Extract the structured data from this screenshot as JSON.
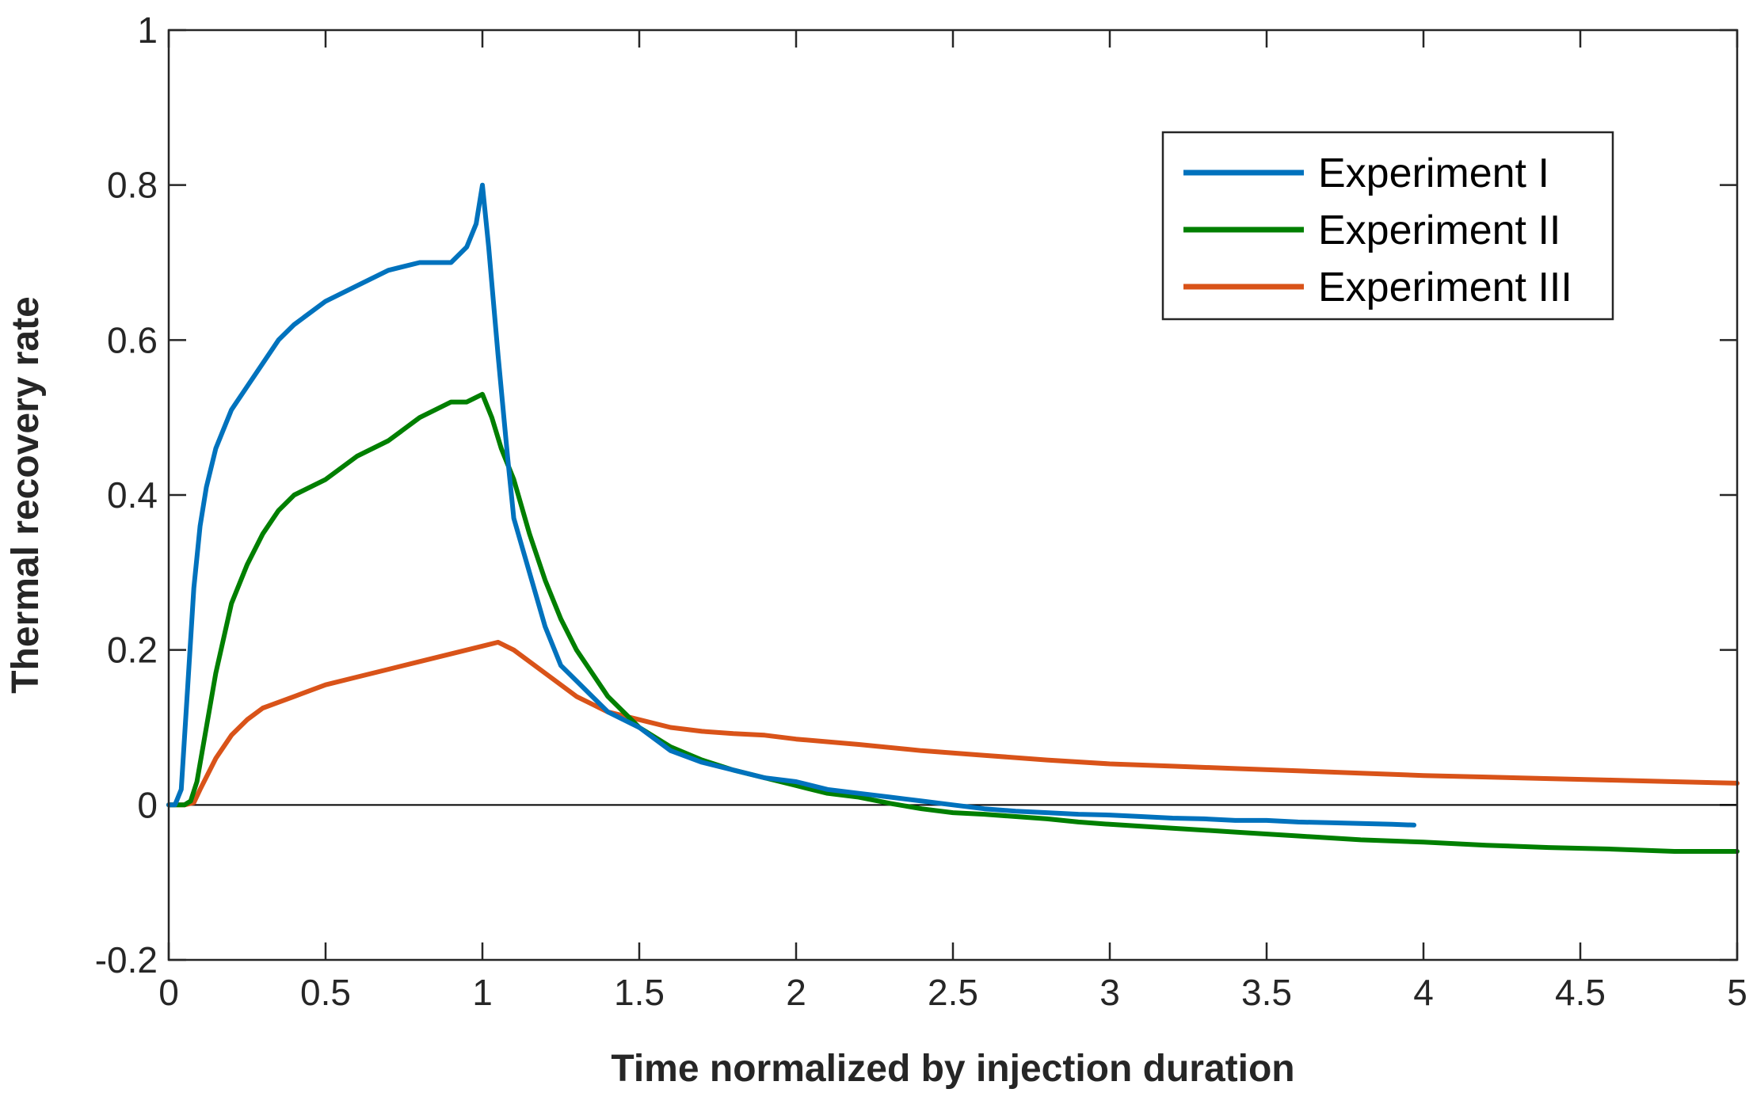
{
  "chart_data": {
    "type": "line",
    "title": "",
    "xlabel": "Time normalized by injection duration",
    "ylabel": "Thermal recovery rate",
    "xlim": [
      0,
      5
    ],
    "ylim": [
      -0.2,
      1
    ],
    "xticks": [
      0,
      0.5,
      1,
      1.5,
      2,
      2.5,
      3,
      3.5,
      4,
      4.5,
      5
    ],
    "xtick_labels": [
      "0",
      "0.5",
      "1",
      "1.5",
      "2",
      "2.5",
      "3",
      "3.5",
      "4",
      "4.5",
      "5"
    ],
    "yticks": [
      -0.2,
      0,
      0.2,
      0.4,
      0.6,
      0.8,
      1
    ],
    "ytick_labels": [
      "-0.2",
      "0",
      "0.2",
      "0.4",
      "0.6",
      "0.8",
      "1"
    ],
    "grid": false,
    "zero_line": true,
    "legend_position": "top-right",
    "series": [
      {
        "name": "Experiment I",
        "color": "#0072BD",
        "x": [
          0,
          0.02,
          0.04,
          0.06,
          0.08,
          0.1,
          0.12,
          0.15,
          0.2,
          0.25,
          0.3,
          0.35,
          0.4,
          0.5,
          0.6,
          0.7,
          0.8,
          0.9,
          0.95,
          0.98,
          1.0,
          1.02,
          1.05,
          1.08,
          1.1,
          1.15,
          1.2,
          1.25,
          1.3,
          1.35,
          1.4,
          1.5,
          1.6,
          1.7,
          1.8,
          1.9,
          2.0,
          2.1,
          2.2,
          2.3,
          2.4,
          2.5,
          2.6,
          2.7,
          2.8,
          2.9,
          3.0,
          3.1,
          3.2,
          3.3,
          3.4,
          3.5,
          3.6,
          3.7,
          3.8,
          3.9,
          3.97
        ],
        "values": [
          0,
          0,
          0.02,
          0.15,
          0.28,
          0.36,
          0.41,
          0.46,
          0.51,
          0.54,
          0.57,
          0.6,
          0.62,
          0.65,
          0.67,
          0.69,
          0.7,
          0.7,
          0.72,
          0.75,
          0.8,
          0.72,
          0.58,
          0.45,
          0.37,
          0.3,
          0.23,
          0.18,
          0.16,
          0.14,
          0.12,
          0.1,
          0.07,
          0.055,
          0.045,
          0.035,
          0.03,
          0.02,
          0.015,
          0.01,
          0.005,
          0.0,
          -0.005,
          -0.008,
          -0.01,
          -0.012,
          -0.013,
          -0.015,
          -0.017,
          -0.018,
          -0.02,
          -0.02,
          -0.022,
          -0.023,
          -0.024,
          -0.025,
          -0.026
        ]
      },
      {
        "name": "Experiment II",
        "color": "#007F00",
        "x": [
          0,
          0.05,
          0.07,
          0.09,
          0.12,
          0.15,
          0.2,
          0.25,
          0.3,
          0.35,
          0.4,
          0.5,
          0.6,
          0.7,
          0.8,
          0.9,
          0.95,
          1.0,
          1.03,
          1.06,
          1.1,
          1.15,
          1.2,
          1.25,
          1.3,
          1.35,
          1.4,
          1.5,
          1.6,
          1.7,
          1.8,
          1.9,
          2.0,
          2.1,
          2.2,
          2.3,
          2.4,
          2.5,
          2.6,
          2.7,
          2.8,
          2.9,
          3.0,
          3.2,
          3.4,
          3.6,
          3.8,
          4.0,
          4.2,
          4.4,
          4.6,
          4.8,
          5.0
        ],
        "values": [
          0,
          0,
          0.005,
          0.03,
          0.1,
          0.17,
          0.26,
          0.31,
          0.35,
          0.38,
          0.4,
          0.42,
          0.45,
          0.47,
          0.5,
          0.52,
          0.52,
          0.53,
          0.5,
          0.46,
          0.42,
          0.35,
          0.29,
          0.24,
          0.2,
          0.17,
          0.14,
          0.1,
          0.075,
          0.058,
          0.045,
          0.035,
          0.025,
          0.015,
          0.01,
          0.002,
          -0.005,
          -0.01,
          -0.012,
          -0.015,
          -0.018,
          -0.022,
          -0.025,
          -0.03,
          -0.035,
          -0.04,
          -0.045,
          -0.048,
          -0.052,
          -0.055,
          -0.057,
          -0.06,
          -0.06
        ]
      },
      {
        "name": "Experiment III",
        "color": "#D95319",
        "x": [
          0,
          0.05,
          0.08,
          0.1,
          0.15,
          0.2,
          0.25,
          0.3,
          0.4,
          0.5,
          0.6,
          0.7,
          0.8,
          0.9,
          0.95,
          1.0,
          1.05,
          1.1,
          1.2,
          1.3,
          1.4,
          1.5,
          1.6,
          1.7,
          1.8,
          1.9,
          2.0,
          2.2,
          2.4,
          2.6,
          2.8,
          3.0,
          3.2,
          3.4,
          3.6,
          3.8,
          4.0,
          4.2,
          4.4,
          4.6,
          4.8,
          5.0
        ],
        "values": [
          0,
          0,
          0.003,
          0.02,
          0.06,
          0.09,
          0.11,
          0.125,
          0.14,
          0.155,
          0.165,
          0.175,
          0.185,
          0.195,
          0.2,
          0.205,
          0.21,
          0.2,
          0.17,
          0.14,
          0.12,
          0.11,
          0.1,
          0.095,
          0.092,
          0.09,
          0.085,
          0.078,
          0.07,
          0.064,
          0.058,
          0.053,
          0.05,
          0.047,
          0.044,
          0.041,
          0.038,
          0.036,
          0.034,
          0.032,
          0.03,
          0.028
        ]
      }
    ]
  }
}
